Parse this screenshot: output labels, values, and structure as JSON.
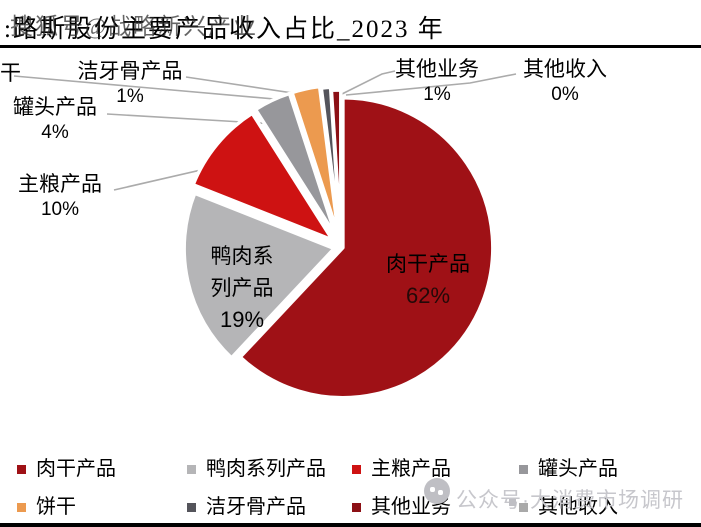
{
  "title": ":路斯股份主要产品收入占比_2023 年",
  "watermarks": {
    "top": "搜狐号@战略新兴产业",
    "bottom": "公众号·大消费市场调研"
  },
  "chart_data": {
    "type": "pie",
    "title": "路斯股份主要产品收入占比_2023年",
    "unit": "%",
    "start_angle_deg": 0,
    "direction": "clockwise",
    "legend_position": "bottom",
    "slices": [
      {
        "label": "肉干产品",
        "value": 62,
        "pct_text": "62%",
        "color": "#9F1116",
        "label_placement": "inside"
      },
      {
        "label": "鸭肉系列产品",
        "value": 19,
        "pct_text": "19%",
        "color": "#B5B5B7",
        "label_placement": "inside"
      },
      {
        "label": "主粮产品",
        "value": 10,
        "pct_text": "10%",
        "color": "#CE1212",
        "label_placement": "outside"
      },
      {
        "label": "罐头产品",
        "value": 4,
        "pct_text": "4%",
        "color": "#97979B",
        "label_placement": "outside"
      },
      {
        "label": "饼干",
        "value": 3,
        "pct_text": "",
        "color": "#EC9A4F",
        "label_placement": "outside"
      },
      {
        "label": "洁牙骨产品",
        "value": 1,
        "pct_text": "1%",
        "color": "#54545B",
        "label_placement": "outside"
      },
      {
        "label": "其他业务",
        "value": 1,
        "pct_text": "1%",
        "color": "#8C1015",
        "label_placement": "outside"
      },
      {
        "label": "其他收入",
        "value": 0,
        "pct_text": "0%",
        "color": "#A9A9A9",
        "label_placement": "outside"
      }
    ]
  }
}
